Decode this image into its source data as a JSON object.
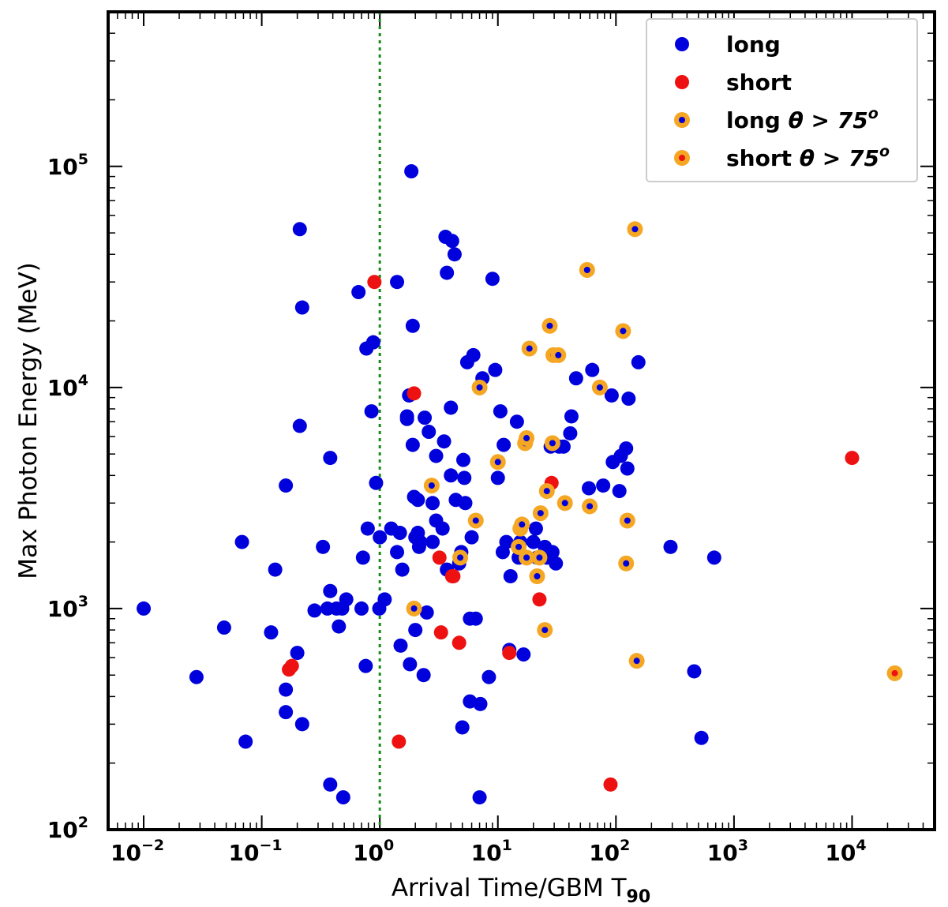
{
  "chart_data": {
    "type": "scatter",
    "title": "",
    "xlabel": "Arrival Time/GBM T",
    "xlabel_subscript": "90",
    "ylabel": "Max Photon Energy (MeV)",
    "xscale": "log",
    "yscale": "log",
    "xlim": [
      0.005,
      50000
    ],
    "ylim": [
      100,
      500000
    ],
    "x_tick_labels": [
      "10",
      "10",
      "10",
      "10",
      "10",
      "10",
      "10"
    ],
    "x_tick_exponents": [
      "−2",
      "−1",
      "0",
      "1",
      "2",
      "3",
      "4"
    ],
    "y_tick_labels": [
      "10",
      "10",
      "10",
      "10"
    ],
    "y_tick_exponents": [
      "2",
      "3",
      "4",
      "5"
    ],
    "reference_line": {
      "x": 1,
      "style": "dotted",
      "color": "#1a8a1a"
    },
    "legend_position": "top-right",
    "legend": [
      {
        "series": "long",
        "label": "long"
      },
      {
        "series": "short",
        "label": "short"
      },
      {
        "series": "long_hi",
        "label": "long ",
        "theta_text": "θ > 75",
        "theta_sup": "o"
      },
      {
        "series": "short_hi",
        "label": "short ",
        "theta_text": "θ > 75",
        "theta_sup": "o"
      }
    ],
    "colors": {
      "long": "#0000dd",
      "short": "#ee1111",
      "ring": "#f5a623",
      "refline": "#1a8a1a"
    },
    "series": [
      {
        "name": "long",
        "points": [
          [
            0.01,
            1000
          ],
          [
            0.028,
            490
          ],
          [
            0.048,
            820
          ],
          [
            0.068,
            2000
          ],
          [
            0.073,
            250
          ],
          [
            0.12,
            780
          ],
          [
            0.13,
            1500
          ],
          [
            0.16,
            3600
          ],
          [
            0.16,
            430
          ],
          [
            0.16,
            340
          ],
          [
            0.2,
            630
          ],
          [
            0.21,
            52000
          ],
          [
            0.21,
            6700
          ],
          [
            0.22,
            23000
          ],
          [
            0.22,
            300
          ],
          [
            0.28,
            980
          ],
          [
            0.33,
            1900
          ],
          [
            0.36,
            1000
          ],
          [
            0.38,
            4800
          ],
          [
            0.38,
            1200
          ],
          [
            0.38,
            160
          ],
          [
            0.43,
            1000
          ],
          [
            0.45,
            830
          ],
          [
            0.48,
            1000
          ],
          [
            0.49,
            140
          ],
          [
            0.52,
            1100
          ],
          [
            0.66,
            27000
          ],
          [
            0.7,
            1000
          ],
          [
            0.72,
            1700
          ],
          [
            0.76,
            550
          ],
          [
            0.77,
            15000
          ],
          [
            0.79,
            2300
          ],
          [
            0.85,
            7800
          ],
          [
            0.88,
            16000
          ],
          [
            0.93,
            3700
          ],
          [
            0.99,
            1000
          ],
          [
            1.0,
            2100
          ],
          [
            1.1,
            1100
          ],
          [
            1.25,
            2300
          ],
          [
            1.4,
            30000
          ],
          [
            1.4,
            1800
          ],
          [
            1.48,
            2200
          ],
          [
            1.5,
            680
          ],
          [
            1.55,
            1500
          ],
          [
            1.7,
            7200
          ],
          [
            1.7,
            7400
          ],
          [
            1.77,
            9200
          ],
          [
            1.8,
            560
          ],
          [
            1.85,
            95000
          ],
          [
            1.9,
            19000
          ],
          [
            1.9,
            5500
          ],
          [
            1.95,
            3200
          ],
          [
            2.0,
            800
          ],
          [
            2.0,
            2100
          ],
          [
            2.1,
            2200
          ],
          [
            2.1,
            3100
          ],
          [
            2.15,
            1900
          ],
          [
            2.2,
            2000
          ],
          [
            2.35,
            500
          ],
          [
            2.4,
            7300
          ],
          [
            2.5,
            960
          ],
          [
            2.6,
            6300
          ],
          [
            2.8,
            3000
          ],
          [
            2.8,
            2000
          ],
          [
            3.0,
            2500
          ],
          [
            3.0,
            4900
          ],
          [
            3.4,
            2300
          ],
          [
            3.5,
            5700
          ],
          [
            3.6,
            48000
          ],
          [
            3.7,
            33000
          ],
          [
            3.7,
            1500
          ],
          [
            4.0,
            8100
          ],
          [
            4.0,
            4000
          ],
          [
            4.1,
            46000
          ],
          [
            4.3,
            40000
          ],
          [
            4.4,
            3100
          ],
          [
            4.7,
            1600
          ],
          [
            4.9,
            1800
          ],
          [
            5.0,
            290
          ],
          [
            5.1,
            4700
          ],
          [
            5.2,
            3900
          ],
          [
            5.3,
            3000
          ],
          [
            5.5,
            13000
          ],
          [
            5.8,
            380
          ],
          [
            5.8,
            900
          ],
          [
            6.0,
            2100
          ],
          [
            6.2,
            14000
          ],
          [
            6.5,
            900
          ],
          [
            7.0,
            140
          ],
          [
            7.1,
            370
          ],
          [
            7.4,
            11000
          ],
          [
            8.4,
            490
          ],
          [
            9.0,
            31000
          ],
          [
            9.5,
            12000
          ],
          [
            10.0,
            3900
          ],
          [
            10.5,
            7800
          ],
          [
            11.0,
            1800
          ],
          [
            11.2,
            5500
          ],
          [
            11.8,
            2000
          ],
          [
            12.5,
            650
          ],
          [
            12.8,
            1400
          ],
          [
            14.5,
            7000
          ],
          [
            15.0,
            1700
          ],
          [
            15.5,
            2000
          ],
          [
            16.5,
            620
          ],
          [
            20.0,
            2000
          ],
          [
            21.0,
            2300
          ],
          [
            21.5,
            1700
          ],
          [
            25.0,
            1900
          ],
          [
            26.0,
            1700
          ],
          [
            28.0,
            5400
          ],
          [
            29.0,
            1800
          ],
          [
            31.0,
            1600
          ],
          [
            33.0,
            5400
          ],
          [
            36.0,
            5400
          ],
          [
            41.0,
            6200
          ],
          [
            42.0,
            7400
          ],
          [
            46.0,
            11000
          ],
          [
            59.0,
            3500
          ],
          [
            63.0,
            12000
          ],
          [
            78.0,
            3600
          ],
          [
            92.0,
            9200
          ],
          [
            94.0,
            4600
          ],
          [
            107.0,
            3400
          ],
          [
            110.0,
            4900
          ],
          [
            122.0,
            5300
          ],
          [
            125.0,
            4300
          ],
          [
            128.0,
            8900
          ],
          [
            155.0,
            13000
          ],
          [
            290.0,
            1900
          ],
          [
            460.0,
            520
          ],
          [
            530.0,
            260
          ],
          [
            680.0,
            1700
          ]
        ]
      },
      {
        "name": "short",
        "points": [
          [
            0.17,
            530
          ],
          [
            0.18,
            550
          ],
          [
            0.9,
            30000
          ],
          [
            1.45,
            250
          ],
          [
            1.95,
            9400
          ],
          [
            3.2,
            1700
          ],
          [
            3.3,
            780
          ],
          [
            4.1,
            1400
          ],
          [
            4.2,
            1400
          ],
          [
            4.7,
            700
          ],
          [
            12.5,
            630
          ],
          [
            22.5,
            1100
          ],
          [
            28.5,
            3700
          ],
          [
            90.0,
            160
          ],
          [
            10000.0,
            4800
          ]
        ]
      },
      {
        "name": "long_hi",
        "points": [
          [
            1.95,
            1000
          ],
          [
            2.75,
            3600
          ],
          [
            6.5,
            2500
          ],
          [
            7.0,
            10000
          ],
          [
            4.8,
            1700
          ],
          [
            10.0,
            4600
          ],
          [
            17.0,
            5600
          ],
          [
            18.5,
            15000
          ],
          [
            15.5,
            2300
          ],
          [
            15.0,
            1900
          ],
          [
            16.0,
            2400
          ],
          [
            17.5,
            1700
          ],
          [
            21.5,
            1400
          ],
          [
            22.5,
            1700
          ],
          [
            23.0,
            2700
          ],
          [
            25.0,
            800
          ],
          [
            26.0,
            3400
          ],
          [
            27.5,
            19000
          ],
          [
            29.5,
            14000
          ],
          [
            32.5,
            14000
          ],
          [
            17.5,
            5900
          ],
          [
            29.0,
            5600
          ],
          [
            37.0,
            3000
          ],
          [
            57.0,
            34000
          ],
          [
            60.0,
            2900
          ],
          [
            73.0,
            10000
          ],
          [
            115.0,
            18000
          ],
          [
            122.0,
            1600
          ],
          [
            125.0,
            2500
          ],
          [
            145.0,
            52000
          ],
          [
            150.0,
            580
          ]
        ]
      },
      {
        "name": "short_hi",
        "points": [
          [
            23000.0,
            510
          ]
        ]
      }
    ]
  }
}
